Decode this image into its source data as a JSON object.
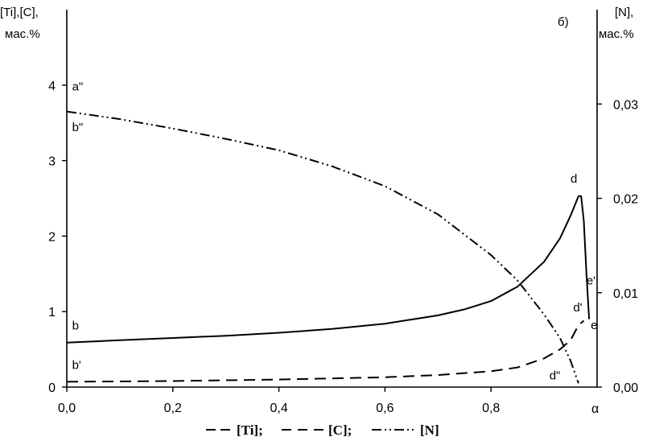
{
  "chart_data": {
    "type": "line",
    "panel_label": "б)",
    "ylabel_left": [
      "[Ti],[C],",
      "мас.%"
    ],
    "ylabel_right": [
      "[N],",
      "мас.%"
    ],
    "xlabel": "α",
    "xlim": [
      0,
      1.0
    ],
    "ylim_left": [
      0,
      5
    ],
    "ylim_right": [
      0,
      0.04
    ],
    "x_ticks": [
      "0,0",
      "0,2",
      "0,4",
      "0,6",
      "0,8"
    ],
    "x_tick_values": [
      0,
      0.2,
      0.4,
      0.6,
      0.8
    ],
    "y_left_ticks": [
      "0",
      "1",
      "2",
      "3",
      "4"
    ],
    "y_left_tick_values": [
      0,
      1,
      2,
      3,
      4
    ],
    "y_right_ticks": [
      "0,00",
      "0,01",
      "0,02",
      "0,03"
    ],
    "y_right_tick_values": [
      0,
      0.01,
      0.02,
      0.03
    ],
    "legend": {
      "items": [
        {
          "marker": "— —",
          "label": "[Ti];"
        },
        {
          "marker": "— — —",
          "label": "[C];"
        },
        {
          "marker": "— ·· —",
          "label": "[N]"
        }
      ]
    },
    "series": [
      {
        "name": "[Ti]",
        "axis": "left",
        "style": "solid",
        "x": [
          0,
          0.1,
          0.2,
          0.3,
          0.4,
          0.5,
          0.6,
          0.7,
          0.75,
          0.8,
          0.85,
          0.9,
          0.93,
          0.95,
          0.965,
          0.97,
          0.975,
          0.98,
          0.985
        ],
        "y": [
          0.59,
          0.62,
          0.65,
          0.68,
          0.72,
          0.77,
          0.84,
          0.95,
          1.03,
          1.14,
          1.33,
          1.66,
          1.97,
          2.27,
          2.53,
          2.53,
          2.2,
          1.5,
          0.9
        ]
      },
      {
        "name": "[C]",
        "axis": "left",
        "style": "dashed",
        "x": [
          0,
          0.2,
          0.4,
          0.6,
          0.7,
          0.8,
          0.85,
          0.9,
          0.93,
          0.95,
          0.965,
          0.975
        ],
        "y": [
          0.07,
          0.08,
          0.1,
          0.13,
          0.16,
          0.21,
          0.26,
          0.38,
          0.5,
          0.62,
          0.82,
          0.88
        ]
      },
      {
        "name": "[N]",
        "axis": "right",
        "style": "dash-dot-dot",
        "x": [
          0,
          0.1,
          0.2,
          0.3,
          0.4,
          0.5,
          0.6,
          0.7,
          0.8,
          0.85,
          0.9,
          0.93,
          0.95,
          0.965
        ],
        "y": [
          0.0292,
          0.0284,
          0.0274,
          0.0263,
          0.0251,
          0.0234,
          0.0213,
          0.0183,
          0.014,
          0.0113,
          0.0077,
          0.0052,
          0.0028,
          0.0004
        ]
      }
    ],
    "annotations": [
      {
        "text": "a\"",
        "x": 0.01,
        "y": 3.93,
        "axis": "left"
      },
      {
        "text": "b\"",
        "x": 0.01,
        "y": 3.39,
        "axis": "left"
      },
      {
        "text": "b",
        "x": 0.01,
        "y": 0.76,
        "axis": "left"
      },
      {
        "text": "b'",
        "x": 0.01,
        "y": 0.24,
        "axis": "left"
      },
      {
        "text": "d",
        "x": 0.95,
        "y": 2.71,
        "axis": "left"
      },
      {
        "text": "e'",
        "x": 0.98,
        "y": 1.36,
        "axis": "left"
      },
      {
        "text": "d'",
        "x": 0.955,
        "y": 1.0,
        "axis": "left"
      },
      {
        "text": "e",
        "x": 0.988,
        "y": 0.77,
        "axis": "left"
      },
      {
        "text": "d\"",
        "x": 0.91,
        "y": 0.1,
        "axis": "left"
      }
    ]
  }
}
